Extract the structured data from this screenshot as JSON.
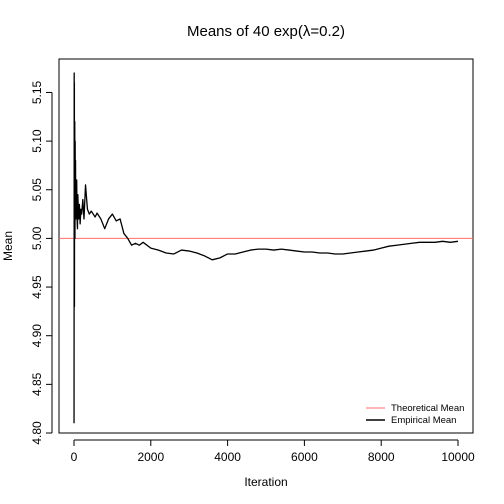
{
  "chart_data": {
    "type": "line",
    "title": "Means of 40 exp(λ=0.2)",
    "xlabel": "Iteration",
    "ylabel": "Mean",
    "xlim": [
      0,
      10000
    ],
    "ylim": [
      4.8,
      5.17
    ],
    "x_ticks": [
      0,
      2000,
      4000,
      6000,
      8000,
      10000
    ],
    "y_ticks": [
      4.8,
      4.85,
      4.9,
      4.95,
      5.0,
      5.05,
      5.1,
      5.15
    ],
    "x_tick_labels": [
      "0",
      "2000",
      "4000",
      "6000",
      "8000",
      "10000"
    ],
    "y_tick_labels": [
      "4.80",
      "4.85",
      "4.90",
      "4.95",
      "5.00",
      "5.05",
      "5.10",
      "5.15"
    ],
    "grid": false,
    "legend_position": "bottom-right",
    "series": [
      {
        "name": "Theoretical Mean",
        "color": "#ff6b6b",
        "type": "hline",
        "y": 5.0
      },
      {
        "name": "Empirical Mean",
        "color": "#000000",
        "x": [
          1,
          3,
          5,
          8,
          10,
          12,
          15,
          18,
          20,
          25,
          30,
          35,
          40,
          45,
          50,
          60,
          70,
          80,
          90,
          100,
          120,
          140,
          160,
          180,
          200,
          230,
          260,
          300,
          350,
          400,
          450,
          500,
          550,
          600,
          700,
          800,
          900,
          1000,
          1100,
          1200,
          1300,
          1400,
          1500,
          1600,
          1700,
          1800,
          2000,
          2200,
          2400,
          2600,
          2800,
          3000,
          3200,
          3400,
          3600,
          3800,
          4000,
          4200,
          4400,
          4600,
          4800,
          5000,
          5200,
          5400,
          5600,
          5800,
          6000,
          6200,
          6400,
          6600,
          6800,
          7000,
          7200,
          7400,
          7600,
          7800,
          8000,
          8200,
          8400,
          8600,
          8800,
          9000,
          9200,
          9400,
          9600,
          9800,
          10000
        ],
        "values": [
          4.81,
          4.96,
          5.17,
          5.02,
          5.16,
          4.93,
          5.09,
          5.04,
          5.12,
          5.0,
          5.1,
          5.03,
          5.08,
          5.02,
          5.06,
          5.04,
          5.06,
          5.02,
          5.01,
          5.045,
          5.02,
          5.035,
          5.015,
          5.03,
          5.025,
          5.04,
          5.02,
          5.055,
          5.03,
          5.025,
          5.028,
          5.025,
          5.022,
          5.026,
          5.02,
          5.01,
          5.02,
          5.025,
          5.018,
          5.02,
          5.005,
          5.0,
          4.993,
          4.995,
          4.993,
          4.996,
          4.99,
          4.988,
          4.985,
          4.984,
          4.988,
          4.987,
          4.985,
          4.982,
          4.978,
          4.98,
          4.984,
          4.984,
          4.986,
          4.988,
          4.989,
          4.989,
          4.988,
          4.989,
          4.988,
          4.987,
          4.986,
          4.986,
          4.985,
          4.985,
          4.984,
          4.984,
          4.985,
          4.986,
          4.987,
          4.988,
          4.99,
          4.992,
          4.993,
          4.994,
          4.995,
          4.996,
          4.996,
          4.996,
          4.997,
          4.996,
          4.997
        ]
      }
    ]
  }
}
